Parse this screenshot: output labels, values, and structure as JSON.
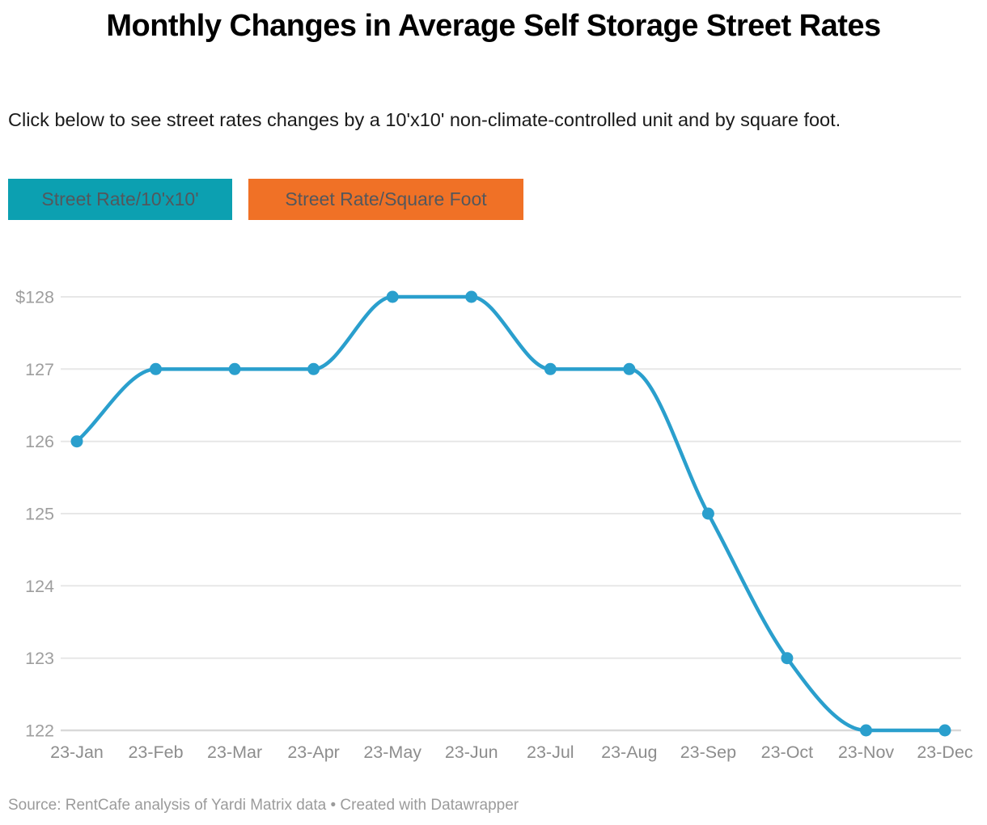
{
  "header": {
    "title": "Monthly Changes in Average Self Storage Street Rates",
    "description": "Click below to see street rates changes by a 10'x10' non-climate-controlled unit and by square foot."
  },
  "buttons": [
    {
      "label": "Street Rate/10'x10'",
      "color": "#0CA0B1"
    },
    {
      "label": "Street Rate/Square Foot",
      "color": "#F07126"
    }
  ],
  "chart_data": {
    "type": "line",
    "title": "Monthly Changes in Average Self Storage Street Rates",
    "categories": [
      "23-Jan",
      "23-Feb",
      "23-Mar",
      "23-Apr",
      "23-May",
      "23-Jun",
      "23-Jul",
      "23-Aug",
      "23-Sep",
      "23-Oct",
      "23-Nov",
      "23-Dec"
    ],
    "series": [
      {
        "name": "Street Rate/10'x10'",
        "values": [
          126,
          127,
          127,
          127,
          128,
          128,
          127,
          127,
          125,
          123,
          122,
          122
        ]
      }
    ],
    "xlabel": "",
    "ylabel": "",
    "ylim": [
      122,
      128
    ],
    "yticks": [
      128,
      127,
      126,
      125,
      124,
      123,
      122
    ],
    "ytick_top_label": "$128",
    "grid": true,
    "legend": "none",
    "marker": "circle",
    "line_color": "#2A9FCD",
    "grid_color": "#E7E7E7",
    "baseline_color": "#D9D9D9",
    "ytick_label_color": "#9E9E9E",
    "xtick_label_color": "#8D8D8D"
  },
  "footer": {
    "source": "Source: RentCafe analysis of Yardi Matrix data • Created with Datawrapper"
  }
}
